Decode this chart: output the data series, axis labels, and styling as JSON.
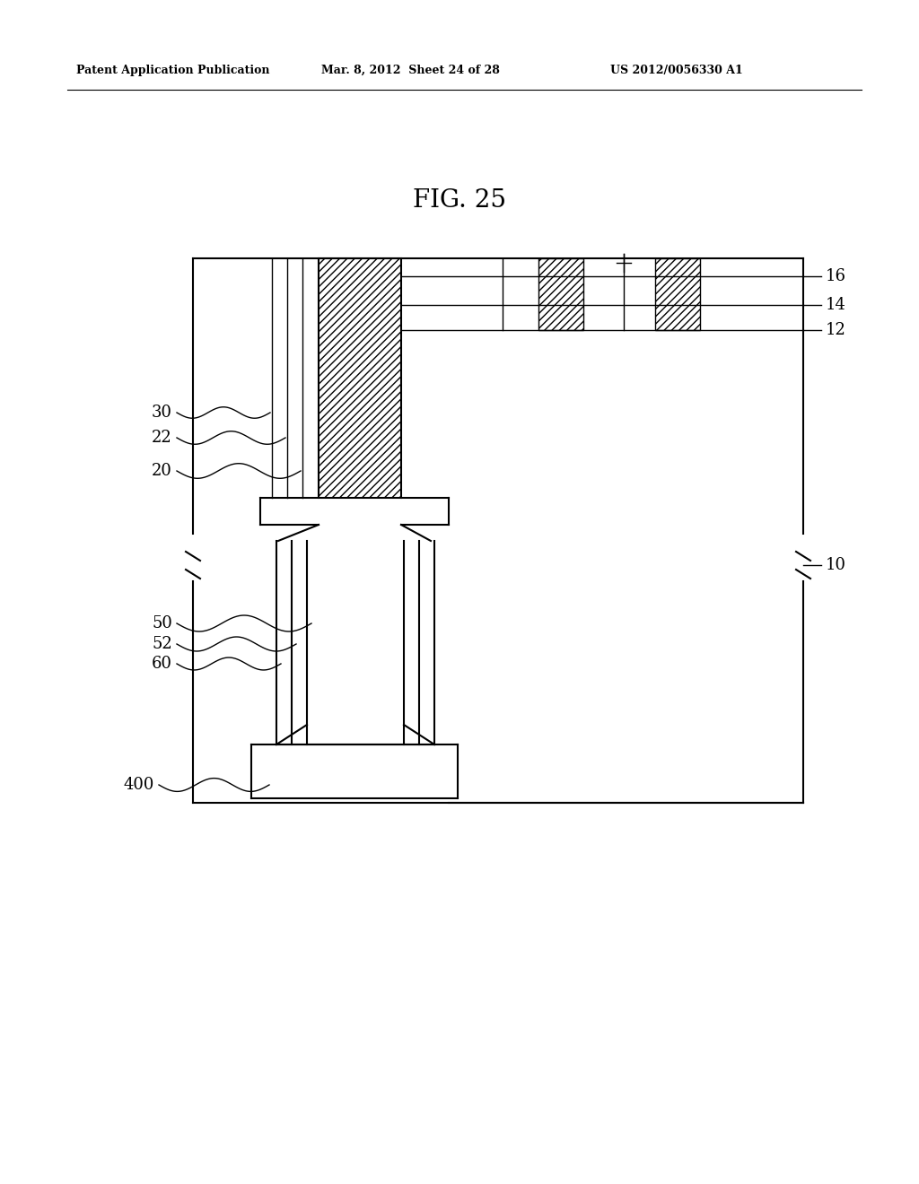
{
  "title": "FIG. 25",
  "header_left": "Patent Application Publication",
  "header_mid": "Mar. 8, 2012  Sheet 24 of 28",
  "header_right": "US 2012/0056330 A1",
  "bg_color": "#ffffff",
  "lc": "#000000"
}
